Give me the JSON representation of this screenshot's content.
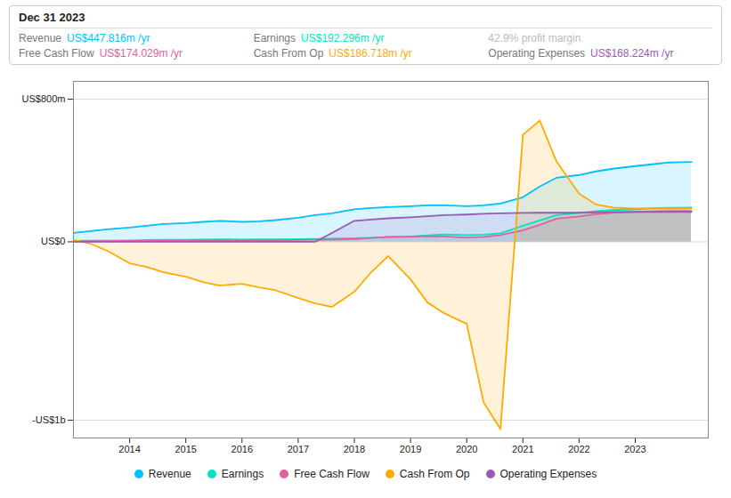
{
  "chart_data": {
    "type": "area",
    "x": [
      2013.0,
      2013.3,
      2013.6,
      2014.0,
      2014.3,
      2014.6,
      2015.0,
      2015.3,
      2015.6,
      2016.0,
      2016.3,
      2016.6,
      2017.0,
      2017.3,
      2017.6,
      2018.0,
      2018.3,
      2018.6,
      2019.0,
      2019.3,
      2019.6,
      2020.0,
      2020.3,
      2020.6,
      2021.0,
      2021.3,
      2021.6,
      2022.0,
      2022.3,
      2022.6,
      2023.0,
      2023.3,
      2023.6,
      2024.0
    ],
    "series": [
      {
        "name": "Revenue",
        "color": "#00bfff",
        "values": [
          50,
          60,
          70,
          80,
          90,
          100,
          105,
          112,
          118,
          112,
          115,
          122,
          135,
          150,
          160,
          182,
          190,
          195,
          200,
          205,
          205,
          200,
          205,
          215,
          250,
          310,
          360,
          375,
          395,
          410,
          425,
          435,
          445,
          448
        ]
      },
      {
        "name": "Earnings",
        "color": "#00e5c0",
        "values": [
          5,
          6,
          7,
          8,
          10,
          11,
          12,
          13,
          14,
          13,
          14,
          14,
          15,
          17,
          18,
          20,
          23,
          27,
          30,
          37,
          42,
          38,
          40,
          48,
          90,
          120,
          150,
          162,
          172,
          178,
          183,
          188,
          191,
          192
        ]
      },
      {
        "name": "Free Cash Flow",
        "color": "#e060a0",
        "values": [
          3,
          4,
          5,
          5,
          6,
          7,
          8,
          9,
          9,
          8,
          9,
          9,
          10,
          12,
          13,
          16,
          22,
          28,
          28,
          32,
          30,
          24,
          28,
          38,
          65,
          95,
          130,
          142,
          155,
          163,
          167,
          171,
          173,
          174
        ]
      },
      {
        "name": "Cash From Op",
        "color": "#ffaa00",
        "values": [
          10,
          -10,
          -50,
          -120,
          -140,
          -170,
          -195,
          -225,
          -245,
          -235,
          -255,
          -272,
          -315,
          -345,
          -365,
          -280,
          -170,
          -80,
          -210,
          -340,
          -400,
          -460,
          -900,
          -1050,
          600,
          680,
          450,
          270,
          210,
          192,
          187,
          187,
          187,
          187
        ]
      },
      {
        "name": "Operating Expenses",
        "color": "#9b59b6",
        "values": [
          0,
          0,
          0,
          0,
          0,
          0,
          0,
          0,
          0,
          0,
          0,
          0,
          0,
          0,
          50,
          118,
          125,
          132,
          138,
          144,
          150,
          153,
          157,
          160,
          162,
          163,
          163,
          163,
          165,
          167,
          168,
          168,
          168,
          168
        ]
      }
    ],
    "xlim": [
      2013.0,
      2024.3
    ],
    "xticks": [
      2014,
      2015,
      2016,
      2017,
      2018,
      2019,
      2020,
      2021,
      2022,
      2023
    ],
    "ylim": [
      -1100,
      900
    ],
    "yticks": [
      {
        "value": -1000,
        "label": "-US$1b"
      },
      {
        "value": 0,
        "label": "US$0"
      },
      {
        "value": 800,
        "label": "US$800m"
      }
    ],
    "grid": true,
    "legend": "bottom",
    "annotation": {
      "title": "Dec 31 2023",
      "rows": [
        {
          "label": "Revenue",
          "value": "US$447.816m /yr",
          "color": "#00bfff"
        },
        {
          "label": "Earnings",
          "value": "US$192.296m /yr",
          "color": "#00e5c0"
        },
        {
          "value": "42.9% profit margin",
          "color": "#bbbbbb"
        },
        {
          "label": "Free Cash Flow",
          "value": "US$174.029m /yr",
          "color": "#e060a0"
        },
        {
          "label": "Cash From Op",
          "value": "US$186.718m /yr",
          "color": "#ffaa00"
        },
        {
          "label": "Operating Expenses",
          "value": "US$168.224m /yr",
          "color": "#9b59b6"
        }
      ]
    }
  }
}
